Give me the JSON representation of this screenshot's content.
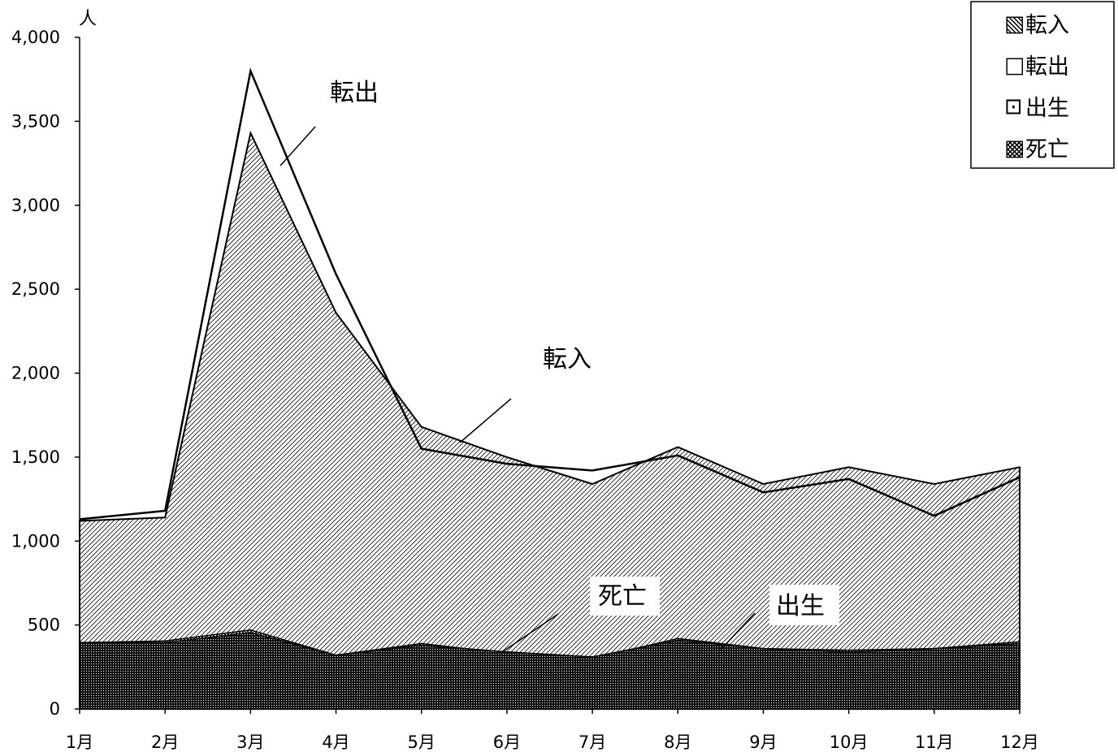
{
  "chart_data": {
    "type": "line",
    "y_unit": "人",
    "categories": [
      "1月",
      "2月",
      "3月",
      "4月",
      "5月",
      "6月",
      "7月",
      "8月",
      "9月",
      "10月",
      "11月",
      "12月"
    ],
    "yticks": [
      "0",
      "500",
      "1,000",
      "1,500",
      "2,000",
      "2,500",
      "3,000",
      "3,500",
      "4,000"
    ],
    "ylim": [
      0,
      4000
    ],
    "series": [
      {
        "name": "転入",
        "pattern": "diagonal-hatch",
        "values": [
          1120,
          1140,
          3430,
          2360,
          1680,
          1500,
          1340,
          1560,
          1340,
          1440,
          1340,
          1440
        ]
      },
      {
        "name": "転出",
        "pattern": "white",
        "values": [
          1130,
          1180,
          3800,
          2590,
          1550,
          1460,
          1420,
          1510,
          1290,
          1370,
          1150,
          1380
        ]
      },
      {
        "name": "出生",
        "pattern": "dotted",
        "values": [
          395,
          405,
          470,
          320,
          390,
          330,
          300,
          420,
          360,
          350,
          360,
          400
        ]
      },
      {
        "name": "死亡",
        "pattern": "dense-dotted",
        "values": [
          395,
          395,
          455,
          320,
          380,
          340,
          310,
          410,
          360,
          340,
          360,
          390
        ]
      }
    ],
    "legend": {
      "position": "top-right",
      "items": [
        "転入",
        "転出",
        "出生",
        "死亡"
      ],
      "markers": [
        "▧",
        "□",
        "⊡",
        "▩"
      ]
    },
    "annotations": [
      {
        "text": "転出",
        "target": "転出"
      },
      {
        "text": "転入",
        "target": "転入"
      },
      {
        "text": "死亡",
        "target": "死亡"
      },
      {
        "text": "出生",
        "target": "出生"
      }
    ],
    "colors": {
      "line": "#000000",
      "background": "#ffffff"
    }
  }
}
